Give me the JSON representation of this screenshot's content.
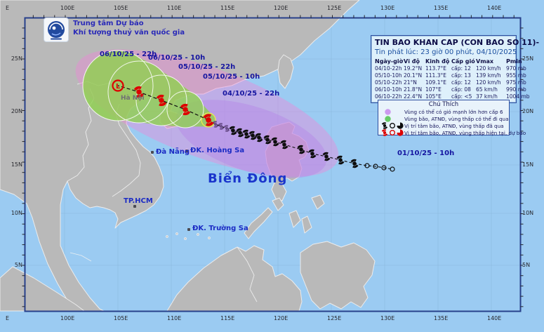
{
  "agency": {
    "line1": "Trung tâm Dự báo",
    "line2": "Khí tượng thuỷ văn quốc gia"
  },
  "infobox": {
    "title": "TIN BAO KHAN CAP (CON BAO SO 11)-",
    "issued": "Tin phát lúc: 23 giờ 00 phút, 04/10/2025",
    "headers": [
      "Ngày-giờ",
      "Vĩ độ",
      "Kinh độ",
      "Cấp gió",
      "Vmax",
      "Pmin"
    ],
    "rows": [
      [
        "04/10-22h",
        "19.2°N",
        "113.7°E",
        "cấp: 12",
        "120 km/h",
        "970 mb"
      ],
      [
        "05/10-10h",
        "20.1°N",
        "111.3°E",
        "cấp: 13",
        "139 km/h",
        "955 mb"
      ],
      [
        "05/10-22h",
        "21°N",
        "109.1°E",
        "cấp: 12",
        "120 km/h",
        "975 mb"
      ],
      [
        "06/10-10h",
        "21.8°N",
        "107°E",
        "cấp: 08",
        "65 km/h",
        "990 mb"
      ],
      [
        "06/10-22h",
        "22.4°N",
        "105°E",
        "cấp: <5",
        "37 km/h",
        "1004 mb"
      ]
    ]
  },
  "legend": {
    "title": "Chú Thích",
    "items": [
      {
        "icon": "purple-area-circle",
        "label": "Vùng có thể có gió mạnh lớn hơn cấp 6"
      },
      {
        "icon": "green-area-circle",
        "label": "Vùng bão, ATNĐ, vùng thấp có thể đi qua"
      },
      {
        "icon": "black-storm-symbols",
        "label": "Vị trí tâm bão, ATNĐ, vùng thấp đã qua"
      },
      {
        "icon": "red-storm-symbols",
        "label": "Vị trí tâm bão, ATNĐ, vùng thấp hiện tại, dự báo"
      }
    ]
  },
  "map": {
    "sea_label": "Biển Đông",
    "low_marker": "L",
    "time_labels": [
      {
        "text": "06/10/25 - 22h"
      },
      {
        "text": "06/10/25 - 10h"
      },
      {
        "text": "05/10/25 - 22h"
      },
      {
        "text": "05/10/25 - 10h"
      },
      {
        "text": "04/10/25 - 22h"
      },
      {
        "text": "01/10/25 - 10h"
      }
    ],
    "places": {
      "hanoi": "Hà Nội",
      "danang": "Đà Nẵng",
      "hcm": "TP.HCM",
      "hoangsa": "ĐK. Hoàng Sa",
      "truongsa": "ĐK. Trường Sa"
    }
  },
  "axes": {
    "top": [
      "E",
      "100E",
      "105E",
      "110E",
      "115E",
      "120E",
      "125E",
      "130E",
      "135E",
      "140E"
    ],
    "lat": [
      "25N",
      "20N",
      "15N",
      "10N",
      "5N"
    ]
  },
  "colors": {
    "sea": "#9bcbf2",
    "land": "#b9b9b9",
    "wind_area_pink": "#ef86d8",
    "wind_area_lavender": "#b688e8",
    "forecast_cone_green": "#8ed24c",
    "past_track": "#0d0d0d",
    "forecast_symbol_red": "#dd0000",
    "frame": "#27408b"
  }
}
